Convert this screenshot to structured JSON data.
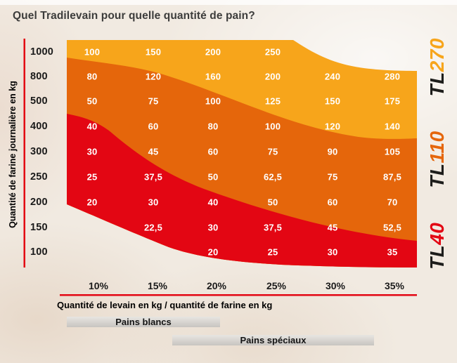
{
  "title": "Quel Tradilevain pour quelle quantité de pain?",
  "chart_data": {
    "type": "heatmap",
    "title": "Quel Tradilevain pour quelle quantité de pain?",
    "xlabel": "Quantité de levain en kg / quantité de farine en kg",
    "ylabel": "Quantité de farine journalière en kg",
    "x_tick_labels": [
      "10%",
      "15%",
      "20%",
      "25%",
      "30%",
      "35%"
    ],
    "y_tick_labels": [
      "1000",
      "800",
      "500",
      "400",
      "300",
      "250",
      "200",
      "150",
      "100"
    ],
    "cell_values": [
      [
        "100",
        "150",
        "200",
        "250",
        "",
        ""
      ],
      [
        "80",
        "120",
        "160",
        "200",
        "240",
        "280"
      ],
      [
        "50",
        "75",
        "100",
        "125",
        "150",
        "175"
      ],
      [
        "40",
        "60",
        "80",
        "100",
        "120",
        "140"
      ],
      [
        "30",
        "45",
        "60",
        "75",
        "90",
        "105"
      ],
      [
        "25",
        "37,5",
        "50",
        "62,5",
        "75",
        "87,5"
      ],
      [
        "20",
        "30",
        "40",
        "50",
        "60",
        "70"
      ],
      [
        "",
        "22,5",
        "30",
        "37,5",
        "45",
        "52,5"
      ],
      [
        "",
        "",
        "20",
        "25",
        "30",
        "35"
      ]
    ],
    "bands": [
      {
        "name": "TL270",
        "position": "top",
        "color": "#F7A51B"
      },
      {
        "name": "TL110",
        "position": "middle",
        "color": "#E5660B"
      },
      {
        "name": "TL40",
        "position": "bottom",
        "color": "#E30613"
      }
    ],
    "grid": false,
    "legend_position": "right-rotated"
  },
  "product_labels": [
    {
      "prefix": "TL",
      "number": "40",
      "prefix_color": "#1d1d1b",
      "number_color": "#E30613"
    },
    {
      "prefix": "TL",
      "number": "110",
      "prefix_color": "#1d1d1b",
      "number_color": "#E5660B"
    },
    {
      "prefix": "TL",
      "number": "270",
      "prefix_color": "#1d1d1b",
      "number_color": "#F7A51B"
    }
  ],
  "footer_bars": [
    {
      "label": "Pains blancs"
    },
    {
      "label": "Pains spéciaux"
    }
  ],
  "colors": {
    "background": "#F1EAE1",
    "axis": "#E30613",
    "title_text": "#3C3C3B",
    "cell_text": "#FFFFFF",
    "tick_text": "#1A1A1A"
  }
}
